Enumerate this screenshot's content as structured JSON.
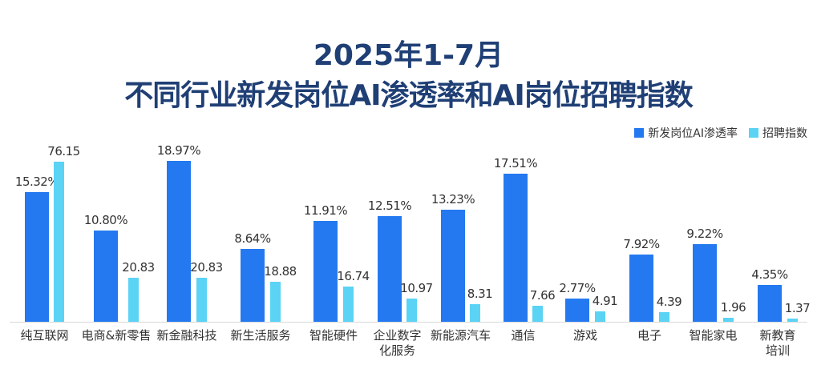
{
  "title": {
    "line1": "2025年1-7月",
    "line2": "不同行业新发岗位AI渗透率和AI岗位招聘指数"
  },
  "legend": {
    "series1": "新发岗位AI渗透率",
    "series2": "招聘指数"
  },
  "colors": {
    "series1": "#2479f0",
    "series2": "#5ad3f5",
    "title": "#1f3f75"
  },
  "chart_data": {
    "type": "bar",
    "title": "2025年1-7月 不同行业新发岗位AI渗透率和AI岗位招聘指数",
    "xlabel": "",
    "ylabel": "",
    "grid": false,
    "legend_position": "top-right",
    "categories": [
      "纯互联网",
      "电商&新零售",
      "新金融科技",
      "新生活服务",
      "智能硬件",
      "企业数字化服务",
      "新能源汽车",
      "通信",
      "游戏",
      "电子",
      "智能家电",
      "新教育培训"
    ],
    "series": [
      {
        "name": "新发岗位AI渗透率",
        "unit": "%",
        "values": [
          15.32,
          10.8,
          18.97,
          8.64,
          11.91,
          12.51,
          13.23,
          17.51,
          2.77,
          7.92,
          9.22,
          4.35
        ],
        "labels": [
          "15.32%",
          "10.80%",
          "18.97%",
          "8.64%",
          "11.91%",
          "12.51%",
          "13.23%",
          "17.51%",
          "2.77%",
          "7.92%",
          "9.22%",
          "4.35%"
        ]
      },
      {
        "name": "招聘指数",
        "values": [
          76.15,
          20.83,
          20.83,
          18.88,
          16.74,
          10.97,
          8.31,
          7.66,
          4.91,
          4.39,
          1.96,
          1.37
        ],
        "labels": [
          "76.15",
          "20.83",
          "20.83",
          "18.88",
          "16.74",
          "10.97",
          "8.31",
          "7.66",
          "4.91",
          "4.39",
          "1.96",
          "1.37"
        ]
      }
    ]
  },
  "category_lines": [
    [
      "纯互联网"
    ],
    [
      "电商&新零售"
    ],
    [
      "新金融科技"
    ],
    [
      "新生活服务"
    ],
    [
      "智能硬件"
    ],
    [
      "企业数字",
      "化服务"
    ],
    [
      "新能源汽车"
    ],
    [
      "通信"
    ],
    [
      "游戏"
    ],
    [
      "电子"
    ],
    [
      "智能家电"
    ],
    [
      "新教育",
      "培训"
    ]
  ]
}
